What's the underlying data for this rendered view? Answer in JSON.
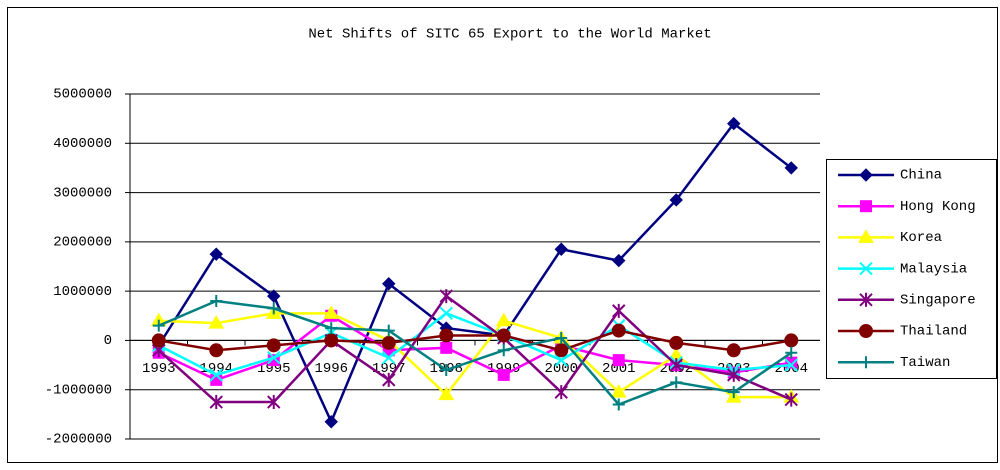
{
  "chart_data": {
    "type": "line",
    "title": "Net Shifts of SITC 65 Export to the World Market",
    "categories": [
      "1993",
      "1994",
      "1995",
      "1996",
      "1997",
      "1998",
      "1999",
      "2000",
      "2001",
      "2002",
      "2003",
      "2004"
    ],
    "ylim": [
      -2000000,
      5000000
    ],
    "yticks": [
      -2000000,
      -1000000,
      0,
      1000000,
      2000000,
      3000000,
      4000000,
      5000000
    ],
    "grid": true,
    "legend": "right",
    "series": [
      {
        "name": "China",
        "color": "#000080",
        "marker": "diamond",
        "values": [
          -100000,
          1750000,
          900000,
          -1650000,
          1150000,
          250000,
          100000,
          1850000,
          1620000,
          2850000,
          4400000,
          3500000
        ]
      },
      {
        "name": "Hong Kong",
        "color": "#ff00ff",
        "marker": "square",
        "values": [
          -250000,
          -800000,
          -400000,
          500000,
          -200000,
          -150000,
          -700000,
          -100000,
          -400000,
          -500000,
          -650000,
          -450000
        ]
      },
      {
        "name": "Korea",
        "color": "#ffff00",
        "marker": "triangle",
        "values": [
          400000,
          350000,
          550000,
          550000,
          0,
          -1100000,
          400000,
          50000,
          -1050000,
          -300000,
          -1150000,
          -1150000
        ]
      },
      {
        "name": "Malaysia",
        "color": "#00ffff",
        "marker": "x",
        "values": [
          -100000,
          -700000,
          -350000,
          150000,
          -350000,
          550000,
          100000,
          -400000,
          300000,
          -450000,
          -600000,
          -500000
        ]
      },
      {
        "name": "Singapore",
        "color": "#800080",
        "marker": "star",
        "values": [
          -200000,
          -1250000,
          -1250000,
          0,
          -800000,
          900000,
          50000,
          -1050000,
          600000,
          -500000,
          -700000,
          -1200000
        ]
      },
      {
        "name": "Thailand",
        "color": "#800000",
        "marker": "circle",
        "values": [
          0,
          -200000,
          -100000,
          0,
          -50000,
          100000,
          100000,
          -200000,
          200000,
          -50000,
          -200000,
          0
        ]
      },
      {
        "name": "Taiwan",
        "color": "#008080",
        "marker": "plus",
        "values": [
          300000,
          800000,
          650000,
          250000,
          200000,
          -600000,
          -200000,
          50000,
          -1300000,
          -850000,
          -1050000,
          -250000
        ]
      }
    ]
  }
}
